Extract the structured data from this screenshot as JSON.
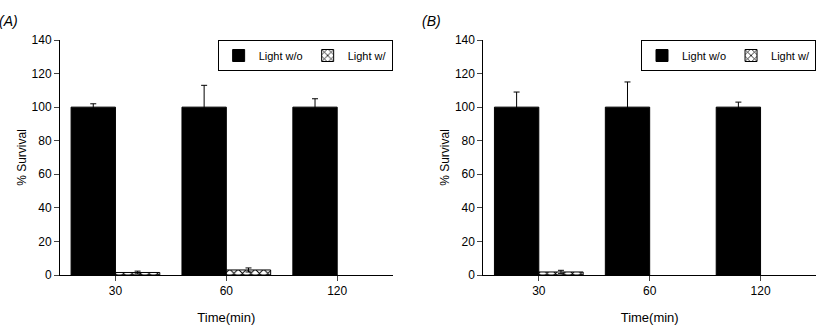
{
  "chart_data": [
    {
      "type": "bar",
      "title": "(A)",
      "categories": [
        "30",
        "60",
        "120"
      ],
      "series": [
        {
          "name": "Light w/o",
          "color": "#000000",
          "values": [
            100,
            100,
            100
          ],
          "errors": [
            2,
            13,
            5
          ]
        },
        {
          "name": "Light w/",
          "color": "#ffffff",
          "values": [
            1.5,
            3.0,
            null
          ],
          "errors": [
            0.8,
            1.2,
            null
          ]
        }
      ],
      "x_label": "Time(min)",
      "y_label": "% Survival",
      "ylim": [
        0,
        140
      ],
      "yticks": [
        0,
        20,
        40,
        60,
        80,
        100,
        120,
        140
      ],
      "grid": false,
      "legend": "upper right"
    },
    {
      "type": "bar",
      "title": "(B)",
      "categories": [
        "30",
        "60",
        "120"
      ],
      "series": [
        {
          "name": "Light w/o",
          "color": "#000000",
          "values": [
            100,
            100,
            100
          ],
          "errors": [
            9,
            15,
            3
          ]
        },
        {
          "name": "Light w/",
          "color": "#ffffff",
          "values": [
            1.8,
            null,
            null
          ],
          "errors": [
            1.0,
            null,
            null
          ]
        }
      ],
      "x_label": "Time(min)",
      "y_label": "% Survival",
      "ylim": [
        0,
        140
      ],
      "yticks": [
        0,
        20,
        40,
        60,
        80,
        100,
        120,
        140
      ],
      "grid": false,
      "legend": "upper right"
    }
  ]
}
